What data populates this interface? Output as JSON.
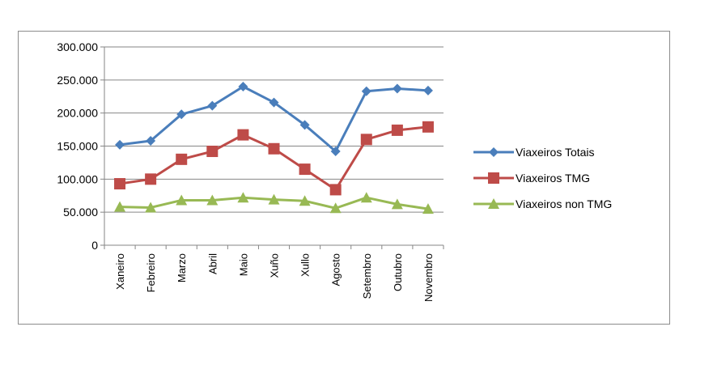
{
  "chart_data": {
    "type": "line",
    "title": "",
    "xlabel": "",
    "ylabel": "",
    "categories": [
      "Xaneiro",
      "Febreiro",
      "Marzo",
      "Abril",
      "Maio",
      "Xuño",
      "Xullo",
      "Agosto",
      "Setembro",
      "Outubro",
      "Novembro"
    ],
    "ylim": [
      0,
      300000
    ],
    "yticks": [
      0,
      50000,
      100000,
      150000,
      200000,
      250000,
      300000
    ],
    "ytick_labels": [
      "0",
      "50.000",
      "100.000",
      "150.000",
      "200.000",
      "250.000",
      "300.000"
    ],
    "grid": true,
    "legend_position": "right",
    "series": [
      {
        "name": "Viaxeiros Totais",
        "color": "#4a7ebb",
        "marker": "diamond",
        "values": [
          152000,
          158000,
          198000,
          211000,
          240000,
          216000,
          182000,
          142000,
          233000,
          237000,
          234000
        ]
      },
      {
        "name": "Viaxeiros TMG",
        "color": "#be4b48",
        "marker": "square",
        "values": [
          93000,
          100000,
          130000,
          142000,
          167000,
          146000,
          115000,
          84000,
          160000,
          174000,
          179000
        ]
      },
      {
        "name": "Viaxeiros non TMG",
        "color": "#98b954",
        "marker": "triangle",
        "values": [
          58000,
          57000,
          68000,
          68000,
          72000,
          69000,
          67000,
          56000,
          72000,
          62000,
          55000
        ]
      }
    ]
  }
}
